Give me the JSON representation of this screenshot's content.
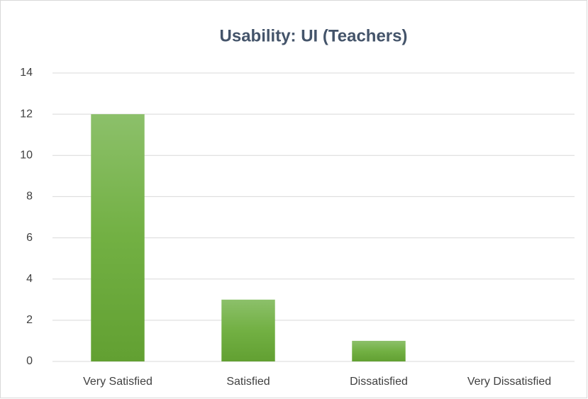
{
  "chart_data": {
    "type": "bar",
    "title": "Usability: UI (Teachers)",
    "categories": [
      "Very Satisfied",
      "Satisfied",
      "Dissatisfied",
      "Very Dissatisfied"
    ],
    "values": [
      12,
      3,
      1,
      0
    ],
    "color": "#70ad47",
    "ylim": [
      0,
      14
    ],
    "yticks": [
      0,
      2,
      4,
      6,
      8,
      10,
      12,
      14
    ],
    "grid": true
  }
}
